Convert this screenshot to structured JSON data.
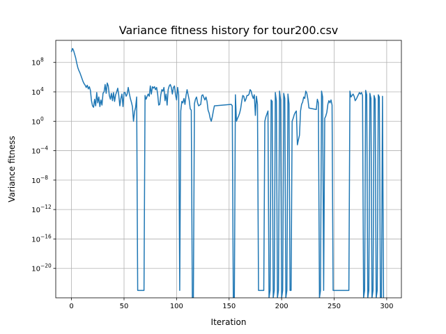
{
  "chart_data": {
    "type": "line",
    "title": "Variance fitness history for tour200.csv",
    "xlabel": "Iteration",
    "ylabel": "Variance fitness",
    "xlim": [
      -15,
      314
    ],
    "ylim_exponent": [
      -24,
      11
    ],
    "y_scale": "log",
    "grid": true,
    "line_color": "#1f77b4",
    "x_ticks": [
      0,
      50,
      100,
      150,
      200,
      250,
      300
    ],
    "x_tick_labels": [
      "0",
      "50",
      "100",
      "150",
      "200",
      "250",
      "300"
    ],
    "y_tick_exponents": [
      8,
      4,
      0,
      -4,
      -8,
      -12,
      -16,
      -20
    ],
    "y_tick_labels": [
      "10",
      "10",
      "10",
      "10",
      "10",
      "10",
      "10",
      "10"
    ],
    "y_tick_superscripts": [
      "8",
      "4",
      "0",
      "−4",
      "−8",
      "−12",
      "−16",
      "−20"
    ],
    "series": [
      {
        "x": [
          0,
          1,
          2,
          3,
          4,
          5,
          6,
          7,
          8,
          9,
          10,
          11,
          12,
          13,
          14,
          15,
          16,
          17,
          18,
          19,
          20,
          21,
          22,
          23,
          24,
          25,
          26,
          27,
          28,
          29,
          30,
          31,
          32,
          33,
          34,
          35,
          36,
          37,
          38,
          39,
          40,
          41,
          42,
          43,
          44,
          45,
          46,
          47,
          48,
          49,
          50,
          51,
          52,
          53,
          54,
          55,
          56,
          57,
          58,
          59,
          60,
          61,
          62,
          63,
          64,
          65,
          66,
          67,
          68,
          69,
          70,
          71,
          72,
          73,
          74,
          75,
          76,
          77,
          78,
          79,
          80,
          81,
          82,
          83,
          84,
          85,
          86,
          87,
          88,
          89,
          90,
          91,
          92,
          93,
          94,
          95,
          96,
          97,
          98,
          99,
          100,
          101,
          102,
          103,
          104,
          105,
          106,
          107,
          108,
          109,
          110,
          111,
          112,
          113,
          114,
          115,
          116,
          117,
          118,
          119,
          120,
          121,
          122,
          123,
          124,
          125,
          126,
          127,
          128,
          129,
          130,
          131,
          132,
          133,
          134,
          135,
          136,
          152,
          153,
          154,
          155,
          156,
          157,
          158,
          159,
          160,
          161,
          162,
          163,
          164,
          165,
          166,
          167,
          168,
          169,
          170,
          171,
          172,
          173,
          174,
          175,
          176,
          177,
          178,
          179,
          180,
          181,
          182,
          183,
          184,
          185,
          186,
          187,
          188,
          189,
          190,
          191,
          192,
          193,
          194,
          195,
          196,
          197,
          198,
          199,
          200,
          201,
          202,
          203,
          204,
          205,
          206,
          207,
          208,
          209,
          210,
          211,
          212,
          213,
          214,
          215,
          216,
          217,
          218,
          219,
          220,
          221,
          222,
          223,
          224,
          225,
          226,
          233,
          234,
          235,
          236,
          237,
          238,
          239,
          240,
          241,
          242,
          243,
          244,
          245,
          246,
          247,
          248,
          249,
          250,
          251,
          252,
          253,
          254,
          255,
          256,
          257,
          258,
          259,
          260,
          261,
          262,
          263,
          264,
          265,
          266,
          267,
          268,
          269,
          270,
          271,
          272,
          273,
          274,
          275,
          276,
          277,
          278,
          279,
          280,
          281,
          282,
          283,
          284,
          285,
          286,
          287,
          288,
          289,
          290,
          291,
          292,
          293,
          294,
          295,
          296,
          297
        ],
        "y_exponent": [
          9.5,
          9.9,
          9.6,
          9.1,
          8.6,
          7.9,
          7.3,
          6.9,
          6.6,
          6.2,
          5.8,
          5.4,
          5.1,
          4.9,
          4.6,
          4.9,
          4.4,
          4.7,
          4.2,
          2.8,
          2.1,
          1.9,
          3.0,
          2.1,
          3.9,
          2.5,
          3.3,
          2.0,
          2.9,
          2.2,
          3.8,
          4.0,
          5.0,
          3.8,
          5.2,
          4.8,
          3.5,
          3.0,
          3.8,
          2.8,
          3.9,
          2.7,
          3.6,
          4.0,
          4.5,
          3.5,
          2.1,
          3.1,
          3.7,
          2.0,
          3.9,
          3.9,
          3.4,
          3.7,
          4.6,
          3.8,
          3.1,
          2.6,
          2.0,
          0.0,
          1.3,
          1.9,
          3.3,
          -23,
          -23,
          -23,
          -23,
          -23,
          -23,
          -23,
          3.5,
          3.0,
          3.4,
          3.7,
          3.4,
          4.8,
          3.7,
          4.7,
          4.5,
          4.7,
          4.3,
          4.6,
          3.7,
          2.2,
          2.3,
          3.6,
          4.3,
          4.1,
          4.6,
          2.8,
          3.7,
          2.2,
          4.3,
          4.8,
          5.0,
          4.6,
          3.7,
          4.6,
          4.8,
          3.6,
          2.9,
          4.6,
          3.6,
          -23,
          1.4,
          2.7,
          2.5,
          3.1,
          2.3,
          3.5,
          4.3,
          3.6,
          2.9,
          1.7,
          1.5,
          -24,
          -24,
          2.4,
          3.0,
          3.3,
          2.5,
          2.1,
          2.2,
          2.3,
          3.5,
          3.6,
          3.2,
          2.9,
          3.3,
          2.7,
          1.5,
          1.1,
          0.4,
          0.0,
          0.6,
          1.4,
          2.1,
          2.3,
          2.1,
          -24,
          -24,
          3.6,
          0.0,
          0.4,
          0.7,
          1.1,
          1.7,
          2.7,
          3.5,
          3.4,
          2.7,
          3.0,
          3.5,
          3.5,
          3.7,
          4.3,
          4.1,
          3.5,
          3.1,
          3.6,
          0.8,
          3.4,
          2.3,
          -23,
          -23,
          -23,
          -23,
          -23,
          -23,
          0.0,
          0.6,
          1.0,
          1.4,
          -24,
          -23,
          2.9,
          2.7,
          -24,
          -23,
          3.9,
          2.8,
          -24,
          -23,
          4.1,
          2.9,
          -24,
          -23,
          3.8,
          3.1,
          -24,
          -23,
          3.7,
          2.4,
          -23,
          -23,
          0.0,
          0.4,
          0.9,
          1.2,
          1.4,
          -3.2,
          -2.5,
          -1.9,
          1.4,
          2.3,
          2.6,
          3.3,
          3.1,
          4.1,
          3.8,
          3.0,
          1.8,
          1.6,
          3.0,
          2.5,
          -24,
          -23,
          4.1,
          3.3,
          -23,
          0.4,
          0.7,
          1.2,
          2.3,
          2.8,
          2.5,
          2.9,
          2.2,
          -23,
          -23,
          -23,
          -23,
          -23,
          -23,
          -23,
          -23,
          -23,
          -23,
          -23,
          -23,
          -23,
          -23,
          -23,
          -23,
          4.1,
          3.3,
          3.5,
          3.7,
          3.4,
          2.8,
          3.0,
          3.3,
          3.6,
          3.9,
          3.7,
          3.9,
          3.5,
          -24,
          -23,
          4.2,
          3.6,
          -24,
          -23,
          3.8,
          3.1,
          -24,
          -23,
          3.5,
          3.0,
          -24,
          -23,
          3.6,
          3.3,
          -24,
          -24,
          3.4,
          -24
        ]
      }
    ]
  }
}
